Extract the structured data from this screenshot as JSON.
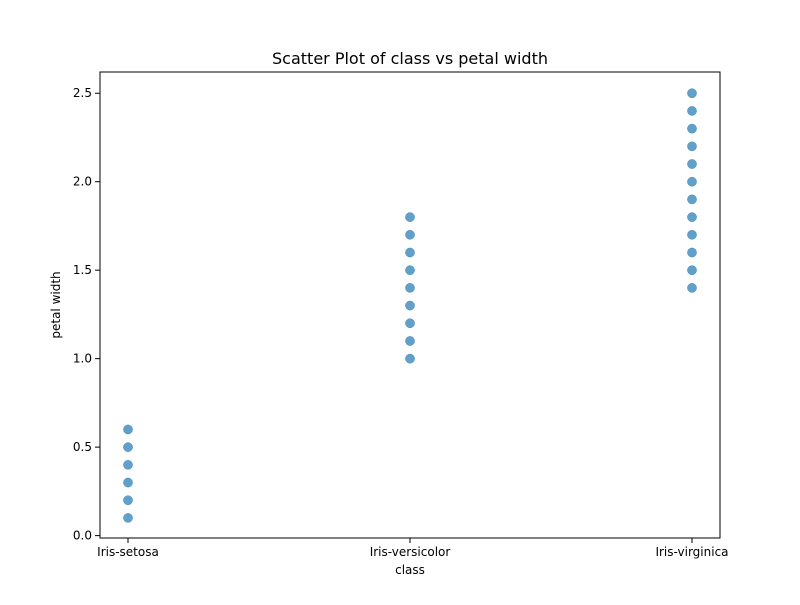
{
  "chart_data": {
    "type": "scatter",
    "title": "Scatter Plot of class vs petal width",
    "xlabel": "class",
    "ylabel": "petal width",
    "categories": [
      "Iris-setosa",
      "Iris-versicolor",
      "Iris-virginica"
    ],
    "ylim": [
      -0.0135,
      2.62
    ],
    "yticks": [
      "0.0",
      "0.5",
      "1.0",
      "1.5",
      "2.0",
      "2.5"
    ],
    "grid": false,
    "legend": "none",
    "series": [
      {
        "color": "#1f77b4",
        "points": [
          {
            "x": "Iris-setosa",
            "y": 0.1
          },
          {
            "x": "Iris-setosa",
            "y": 0.2
          },
          {
            "x": "Iris-setosa",
            "y": 0.3
          },
          {
            "x": "Iris-setosa",
            "y": 0.4
          },
          {
            "x": "Iris-setosa",
            "y": 0.5
          },
          {
            "x": "Iris-setosa",
            "y": 0.6
          },
          {
            "x": "Iris-versicolor",
            "y": 1.0
          },
          {
            "x": "Iris-versicolor",
            "y": 1.1
          },
          {
            "x": "Iris-versicolor",
            "y": 1.2
          },
          {
            "x": "Iris-versicolor",
            "y": 1.3
          },
          {
            "x": "Iris-versicolor",
            "y": 1.4
          },
          {
            "x": "Iris-versicolor",
            "y": 1.5
          },
          {
            "x": "Iris-versicolor",
            "y": 1.6
          },
          {
            "x": "Iris-versicolor",
            "y": 1.7
          },
          {
            "x": "Iris-versicolor",
            "y": 1.8
          },
          {
            "x": "Iris-virginica",
            "y": 1.4
          },
          {
            "x": "Iris-virginica",
            "y": 1.5
          },
          {
            "x": "Iris-virginica",
            "y": 1.6
          },
          {
            "x": "Iris-virginica",
            "y": 1.7
          },
          {
            "x": "Iris-virginica",
            "y": 1.8
          },
          {
            "x": "Iris-virginica",
            "y": 1.9
          },
          {
            "x": "Iris-virginica",
            "y": 2.0
          },
          {
            "x": "Iris-virginica",
            "y": 2.1
          },
          {
            "x": "Iris-virginica",
            "y": 2.2
          },
          {
            "x": "Iris-virginica",
            "y": 2.3
          },
          {
            "x": "Iris-virginica",
            "y": 2.4
          },
          {
            "x": "Iris-virginica",
            "y": 2.5
          }
        ]
      }
    ]
  }
}
